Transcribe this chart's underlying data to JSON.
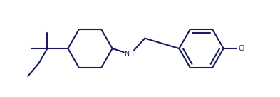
{
  "bg_color": "#ffffff",
  "line_color": "#1a1a5e",
  "cl_color": "#1a1a5e",
  "line_width": 1.5,
  "figsize": [
    3.93,
    1.36
  ],
  "dpi": 100
}
